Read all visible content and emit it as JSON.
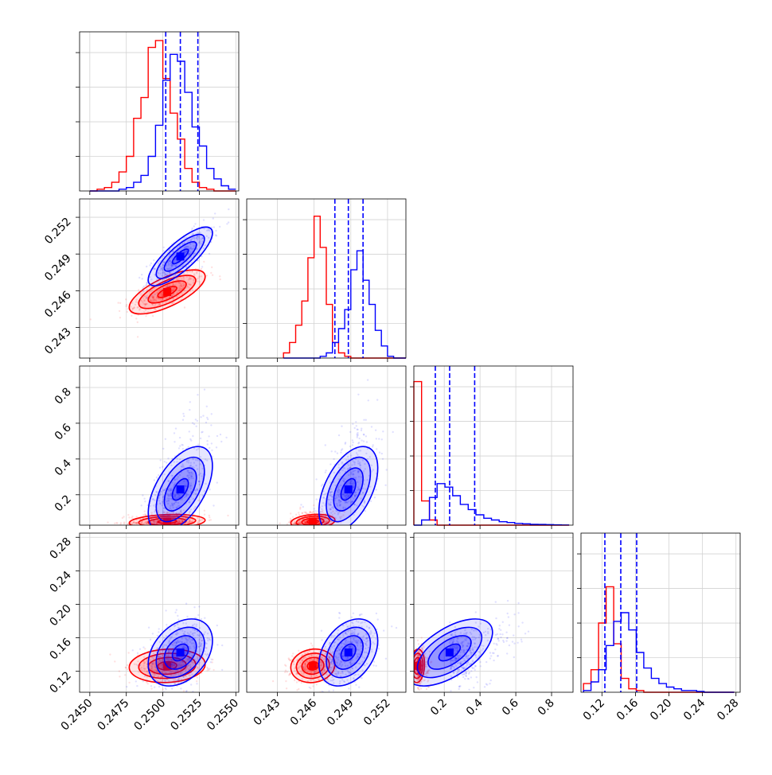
{
  "chart_data": {
    "type": "corner",
    "colors": {
      "a": "#0000ff",
      "b": "#ff0000"
    },
    "params": [
      {
        "range": [
          0.2443,
          0.2552
        ],
        "ticks": [
          "0.2450",
          "0.2475",
          "0.2500",
          "0.2525",
          "0.2550"
        ],
        "tick_values": [
          0.245,
          0.2475,
          0.25,
          0.2525,
          0.255
        ]
      },
      {
        "range": [
          0.2405,
          0.2535
        ],
        "ticks": [
          "0.243",
          "0.246",
          "0.249",
          "0.252"
        ],
        "tick_values": [
          0.243,
          0.246,
          0.249,
          0.252
        ]
      },
      {
        "range": [
          0.03,
          0.92
        ],
        "ticks": [
          "0.2",
          "0.4",
          "0.6",
          "0.8"
        ],
        "tick_values": [
          0.2,
          0.4,
          0.6,
          0.8
        ]
      },
      {
        "range": [
          0.095,
          0.285
        ],
        "ticks": [
          "0.12",
          "0.16",
          "0.20",
          "0.24",
          "0.28"
        ],
        "tick_values": [
          0.12,
          0.16,
          0.2,
          0.24,
          0.28
        ]
      }
    ],
    "quantiles_a": [
      [
        0.2502,
        0.2512,
        0.2524
      ],
      [
        0.2477,
        0.2488,
        0.25
      ],
      [
        0.15,
        0.23,
        0.37
      ],
      [
        0.1235,
        0.1425,
        0.1615
      ]
    ],
    "hist": [
      {
        "edges": [
          0.245,
          0.2455,
          0.246,
          0.2465,
          0.247,
          0.2475,
          0.248,
          0.2485,
          0.249,
          0.2495,
          0.25,
          0.2505,
          0.251,
          0.2515,
          0.252,
          0.2525,
          0.253,
          0.2535,
          0.254,
          0.2545,
          0.255
        ],
        "a": [
          0,
          0,
          0,
          0,
          0.01,
          0.02,
          0.05,
          0.09,
          0.2,
          0.38,
          0.64,
          0.79,
          0.75,
          0.57,
          0.37,
          0.26,
          0.13,
          0.07,
          0.03,
          0.01
        ],
        "b": [
          0,
          0.01,
          0.02,
          0.05,
          0.11,
          0.2,
          0.42,
          0.54,
          0.83,
          0.87,
          0.65,
          0.45,
          0.3,
          0.13,
          0.05,
          0.02,
          0.01,
          0,
          0,
          0
        ]
      },
      {
        "edges": [
          0.2435,
          0.244,
          0.2445,
          0.245,
          0.2455,
          0.246,
          0.2465,
          0.247,
          0.2475,
          0.248,
          0.2485,
          0.249,
          0.2495,
          0.25,
          0.2505,
          0.251,
          0.2515,
          0.252,
          0.2525,
          0.253,
          0.2535
        ],
        "a": [
          0,
          0,
          0,
          0,
          0,
          0,
          0.01,
          0.03,
          0.09,
          0.17,
          0.28,
          0.51,
          0.62,
          0.45,
          0.31,
          0.16,
          0.07,
          0.01,
          0,
          0
        ],
        "b": [
          0.03,
          0.09,
          0.19,
          0.33,
          0.58,
          0.82,
          0.64,
          0.31,
          0.09,
          0.03,
          0.01,
          0,
          0,
          0,
          0,
          0,
          0,
          0,
          0,
          0
        ]
      },
      {
        "edges": [
          0.03,
          0.073,
          0.117,
          0.16,
          0.204,
          0.247,
          0.29,
          0.334,
          0.377,
          0.421,
          0.464,
          0.507,
          0.551,
          0.594,
          0.638,
          0.681,
          0.724,
          0.768,
          0.811,
          0.855,
          0.898
        ],
        "a": [
          0,
          0.03,
          0.16,
          0.24,
          0.22,
          0.17,
          0.12,
          0.09,
          0.06,
          0.04,
          0.03,
          0.02,
          0.015,
          0.01,
          0.008,
          0.005,
          0.004,
          0.003,
          0.002,
          0.001
        ],
        "b": [
          0.83,
          0.14,
          0.03,
          0,
          0,
          0,
          0,
          0,
          0,
          0,
          0,
          0,
          0,
          0,
          0,
          0,
          0,
          0,
          0,
          0
        ]
      },
      {
        "edges": [
          0.098,
          0.107,
          0.116,
          0.125,
          0.134,
          0.143,
          0.152,
          0.161,
          0.17,
          0.179,
          0.188,
          0.197,
          0.206,
          0.215,
          0.224,
          0.233,
          0.242,
          0.251,
          0.26,
          0.269,
          0.278
        ],
        "a": [
          0.01,
          0.06,
          0.13,
          0.27,
          0.41,
          0.46,
          0.36,
          0.23,
          0.14,
          0.08,
          0.05,
          0.03,
          0.02,
          0.01,
          0.01,
          0.005,
          0,
          0,
          0,
          0
        ],
        "b": [
          0.05,
          0.13,
          0.4,
          0.61,
          0.28,
          0.08,
          0.02,
          0.01,
          0,
          0,
          0,
          0,
          0,
          0,
          0,
          0,
          0,
          0,
          0,
          0
        ]
      }
    ],
    "gauss": {
      "a": {
        "mean": [
          0.2512,
          0.2488,
          0.23,
          0.1425
        ],
        "sd": [
          0.0011,
          0.0012,
          0.12,
          0.02
        ],
        "corr": [
          [
            1,
            0.8,
            0.55,
            0.35
          ],
          [
            0.8,
            1,
            0.5,
            0.35
          ],
          [
            0.55,
            0.5,
            1,
            0.6
          ],
          [
            0.35,
            0.35,
            0.6,
            1
          ]
        ]
      },
      "b": {
        "mean": [
          0.2503,
          0.2459,
          0.05,
          0.1265
        ],
        "sd": [
          0.0013,
          0.0009,
          0.02,
          0.01
        ],
        "corr": [
          [
            1,
            0.7,
            0.2,
            0.1
          ],
          [
            0.7,
            1,
            0.2,
            0.1
          ],
          [
            0.2,
            0.2,
            1,
            0.1
          ],
          [
            0.1,
            0.1,
            0.1,
            1
          ]
        ]
      }
    },
    "grid": true,
    "legend": "none"
  }
}
